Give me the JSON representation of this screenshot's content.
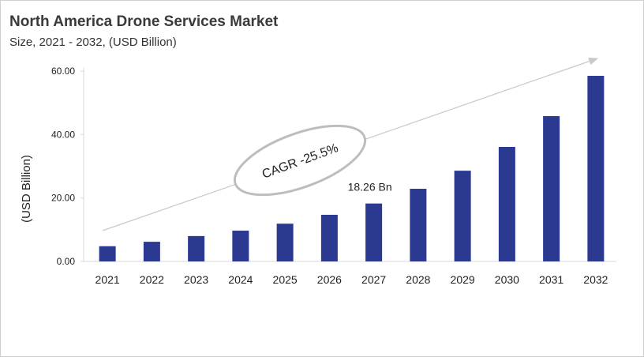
{
  "chart_data": {
    "type": "bar",
    "title": "North America Drone Services Market",
    "subtitle": "Size, 2021 - 2032, (USD Billion)",
    "ylabel": "(USD Billion)",
    "xlabel": "",
    "categories": [
      "2021",
      "2022",
      "2023",
      "2024",
      "2025",
      "2026",
      "2027",
      "2028",
      "2029",
      "2030",
      "2031",
      "2032"
    ],
    "values": [
      4.8,
      6.2,
      8.0,
      9.7,
      11.9,
      14.7,
      18.26,
      22.9,
      28.6,
      36.1,
      45.8,
      58.5
    ],
    "ylim": [
      0,
      60
    ],
    "yticks": [
      "0.00",
      "20.00",
      "40.00",
      "60.00"
    ],
    "grid": false,
    "bar_color": "#2b3990",
    "annotations": {
      "data_label": {
        "category": "2027",
        "text": "18.26 Bn"
      },
      "cagr": "CAGR -25.5%"
    }
  }
}
